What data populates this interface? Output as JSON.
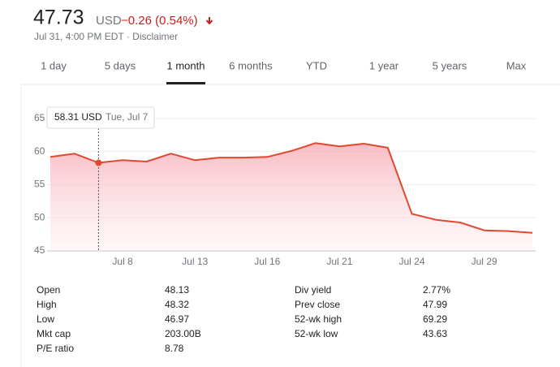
{
  "header": {
    "price": "47.73",
    "currency": "USD",
    "change": "−0.26 (0.54%)",
    "timestamp": "Jul 31, 4:00 PM EDT · ",
    "disclaimer": "Disclaimer"
  },
  "tabs": [
    "1 day",
    "5 days",
    "1 month",
    "6 months",
    "YTD",
    "1 year",
    "5 years",
    "Max"
  ],
  "active_tab": "1 month",
  "chart_data": {
    "type": "line",
    "categories": [
      null,
      null,
      null,
      "Jul 8",
      null,
      null,
      "Jul 13",
      null,
      null,
      "Jul 16",
      null,
      null,
      "Jul 21",
      null,
      null,
      "Jul 24",
      null,
      null,
      "Jul 29",
      null,
      null
    ],
    "values": [
      59.2,
      59.7,
      58.31,
      58.7,
      58.5,
      59.7,
      58.7,
      59.1,
      59.1,
      59.2,
      60.1,
      61.3,
      60.8,
      61.2,
      60.6,
      50.6,
      49.7,
      49.3,
      48.1,
      48.0,
      47.73
    ],
    "color": "#e0492f",
    "ylim": [
      45,
      65
    ],
    "yticks": [
      45,
      50,
      55,
      60,
      65
    ],
    "grid": true,
    "tooltip": {
      "value": "58.31 USD",
      "date": "Tue, Jul 7"
    }
  },
  "stats": {
    "left": [
      [
        "Open",
        "48.13"
      ],
      [
        "High",
        "48.32"
      ],
      [
        "Low",
        "46.97"
      ],
      [
        "Mkt cap",
        "203.00B"
      ],
      [
        "P/E ratio",
        "8.78"
      ]
    ],
    "right": [
      [
        "Div yield",
        "2.77%"
      ],
      [
        "Prev close",
        "47.99"
      ],
      [
        "52-wk high",
        "69.29"
      ],
      [
        "52-wk low",
        "43.63"
      ]
    ]
  }
}
